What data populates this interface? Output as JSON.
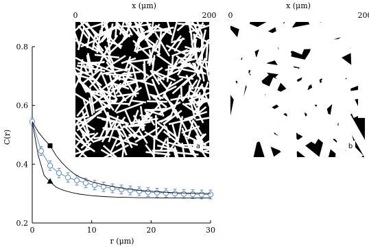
{
  "chart_data": {
    "type": "line",
    "xlabel": "r (μm)",
    "ylabel": "C(r)",
    "xlim": [
      0,
      30
    ],
    "ylim": [
      0.2,
      0.8
    ],
    "xticks": [
      "0",
      "10",
      "20",
      "30"
    ],
    "yticks": [
      "0.2",
      "0.4",
      "0.6",
      "0.8"
    ],
    "grid": false,
    "legend": "none",
    "series": [
      {
        "marker": "open-circle-errorbar",
        "color": "#5b8ccf",
        "x": [
          0,
          1.5,
          3,
          4.5,
          6,
          7.5,
          9,
          10.5,
          12,
          13.5,
          15,
          16.5,
          18,
          19.5,
          21,
          22.5,
          24,
          25.5,
          27,
          28.5,
          30
        ],
        "y": [
          0.545,
          0.445,
          0.395,
          0.37,
          0.355,
          0.345,
          0.336,
          0.329,
          0.323,
          0.318,
          0.314,
          0.311,
          0.308,
          0.305,
          0.303,
          0.302,
          0.3,
          0.299,
          0.298,
          0.297,
          0.297
        ],
        "err": [
          0.012,
          0.015,
          0.016,
          0.016,
          0.016,
          0.016,
          0.016,
          0.016,
          0.016,
          0.015,
          0.015,
          0.015,
          0.015,
          0.015,
          0.015,
          0.015,
          0.015,
          0.015,
          0.015,
          0.015,
          0.015
        ]
      },
      {
        "marker": "line",
        "color": "#000000",
        "x": [
          0,
          1,
          2,
          3,
          4,
          5,
          6,
          7,
          8,
          10,
          12,
          14,
          16,
          18,
          20,
          22,
          24,
          26,
          28,
          30
        ],
        "y": [
          0.545,
          0.51,
          0.485,
          0.463,
          0.43,
          0.405,
          0.385,
          0.368,
          0.356,
          0.34,
          0.33,
          0.322,
          0.316,
          0.311,
          0.308,
          0.305,
          0.303,
          0.302,
          0.301,
          0.3
        ]
      },
      {
        "marker": "line",
        "color": "#000000",
        "x": [
          0,
          1,
          2,
          3,
          4,
          5,
          6,
          7,
          8,
          10,
          12,
          14,
          16,
          18,
          20,
          22,
          24,
          26,
          28,
          30
        ],
        "y": [
          0.545,
          0.43,
          0.362,
          0.34,
          0.322,
          0.313,
          0.307,
          0.302,
          0.298,
          0.293,
          0.29,
          0.288,
          0.287,
          0.286,
          0.286,
          0.285,
          0.285,
          0.285,
          0.285,
          0.285
        ]
      }
    ],
    "markers": [
      {
        "shape": "square",
        "x": 3,
        "y": 0.463
      },
      {
        "shape": "triangle",
        "x": 3,
        "y": 0.342
      }
    ]
  },
  "insets": [
    {
      "label": "a",
      "axis_label": "x (μm)",
      "tick_start": "0",
      "tick_end": "200"
    },
    {
      "label": "b",
      "axis_label": "x (μm)",
      "tick_start": "0",
      "tick_end": "200"
    }
  ]
}
